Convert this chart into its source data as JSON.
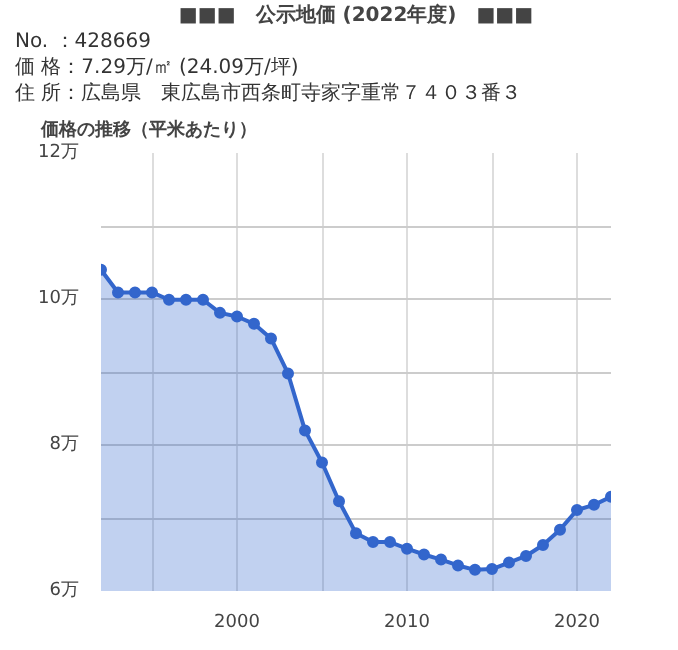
{
  "chart_data": {
    "type": "area",
    "title": "■■■　公示地価 (2022年度)　■■■",
    "subtitle": "価格の推移（平米あたり）",
    "annotations": [
      "No. ：428669",
      "価 格：7.29万/㎡ (24.09万/坪)",
      "住 所：広島県　東広島市西条町寺家字重常７４０３番３"
    ],
    "x": [
      1992,
      1993,
      1994,
      1995,
      1996,
      1997,
      1998,
      1999,
      2000,
      2001,
      2002,
      2003,
      2004,
      2005,
      2006,
      2007,
      2008,
      2009,
      2010,
      2011,
      2012,
      2013,
      2014,
      2015,
      2016,
      2017,
      2018,
      2019,
      2020,
      2021,
      2022
    ],
    "series": [
      {
        "color": "#3366cc",
        "values": [
          10.4,
          10.09,
          10.09,
          10.09,
          9.99,
          9.99,
          9.99,
          9.81,
          9.76,
          9.66,
          9.46,
          8.98,
          8.2,
          7.76,
          7.23,
          6.79,
          6.67,
          6.67,
          6.58,
          6.5,
          6.43,
          6.35,
          6.29,
          6.3,
          6.39,
          6.48,
          6.63,
          6.84,
          7.11,
          7.18,
          7.29
        ]
      }
    ],
    "xlim": [
      1992,
      2022
    ],
    "ylim": [
      6,
      12
    ],
    "xticks": [
      {
        "value": 1995,
        "label": null
      },
      2000,
      {
        "value": 2005,
        "label": null
      },
      2010,
      {
        "value": 2015,
        "label": null
      },
      2020
    ],
    "yticks": [
      {
        "value": 6,
        "label": "6万"
      },
      {
        "value": 7,
        "label": null
      },
      {
        "value": 8,
        "label": "8万"
      },
      {
        "value": 9,
        "label": null
      },
      {
        "value": 10,
        "label": "10万"
      },
      {
        "value": 11,
        "label": null
      },
      {
        "value": 12,
        "label": "12万"
      }
    ],
    "grid": true,
    "marker": "circle"
  }
}
